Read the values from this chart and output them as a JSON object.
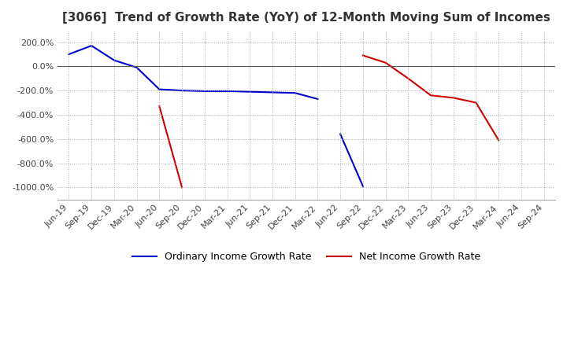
{
  "title": "[3066]  Trend of Growth Rate (YoY) of 12-Month Moving Sum of Incomes",
  "title_fontsize": 11,
  "ylim": [
    -1100,
    300
  ],
  "yticks": [
    200,
    0,
    -200,
    -400,
    -600,
    -800,
    -1000
  ],
  "background_color": "#ffffff",
  "ordinary_color": "#0000cc",
  "net_color": "#cc0000",
  "legend_labels": [
    "Ordinary Income Growth Rate",
    "Net Income Growth Rate"
  ],
  "x_labels": [
    "Jun-19",
    "Sep-19",
    "Dec-19",
    "Mar-20",
    "Jun-20",
    "Sep-20",
    "Dec-20",
    "Mar-21",
    "Jun-21",
    "Sep-21",
    "Dec-21",
    "Mar-22",
    "Jun-22",
    "Sep-22",
    "Dec-22",
    "Mar-23",
    "Jun-23",
    "Sep-23",
    "Dec-23",
    "Mar-24",
    "Jun-24",
    "Sep-24"
  ],
  "ordinary_seg1": {
    "x": [
      0,
      1,
      2,
      3,
      4,
      5,
      6,
      7,
      8,
      9,
      10,
      11
    ],
    "y": [
      100,
      170,
      50,
      -10,
      -190,
      -200,
      -205,
      -205,
      -210,
      -215,
      -220,
      -270
    ]
  },
  "ordinary_seg2": {
    "x": [
      12,
      13
    ],
    "y": [
      -560,
      -990
    ]
  },
  "net_seg1": {
    "x": [
      4,
      5
    ],
    "y": [
      -330,
      -1000
    ]
  },
  "net_seg2": {
    "x": [
      13,
      14,
      15,
      16,
      17,
      18,
      19
    ],
    "y": [
      90,
      30,
      -100,
      -240,
      -260,
      -300,
      -610
    ]
  }
}
